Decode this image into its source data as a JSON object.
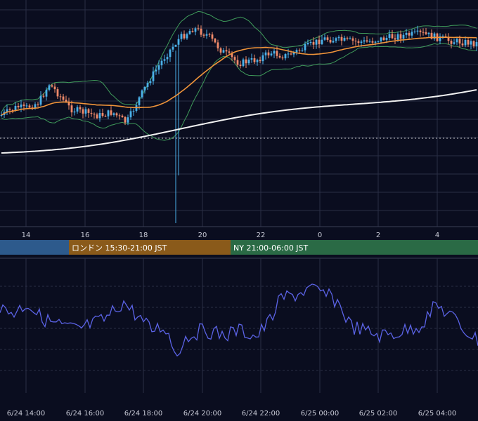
{
  "colors": {
    "background": "#0a0d1f",
    "grid": "#2a2e45",
    "candle_up": "#4ab0e8",
    "candle_down": "#f08a6a",
    "bollinger": "#3f9a5a",
    "ma_fast": "#f0943a",
    "ma_slow": "#f2f2f2",
    "oscillator": "#5b63e6",
    "session_tokyo": "#2d5a8c",
    "session_london": "#8a5a1a",
    "session_ny": "#2a6a45"
  },
  "chart_data": [
    {
      "type": "candlestick",
      "title": "",
      "x_tick_labels": [
        "14",
        "16",
        "18",
        "20",
        "22",
        "0",
        "2",
        "4"
      ],
      "horizontal_reference_line": "dotted",
      "indicators": [
        "bollinger bands",
        "moving average (orange)",
        "moving average (white)"
      ],
      "legend": "none",
      "grid": true
    },
    {
      "type": "line",
      "title": "",
      "x_tick_labels": [
        "6/24 14:00",
        "6/24 16:00",
        "6/24 18:00",
        "6/24 20:00",
        "6/24 22:00",
        "6/25 00:00",
        "6/25 02:00",
        "6/25 04:00"
      ],
      "series_color": "oscillator",
      "grid": true
    }
  ],
  "sessions": [
    {
      "label": "",
      "color": "session_tokyo"
    },
    {
      "label": "ロンドン 15:30-21:00 JST",
      "color": "session_london"
    },
    {
      "label": "NY 21:00-06:00 JST",
      "color": "session_ny"
    }
  ]
}
